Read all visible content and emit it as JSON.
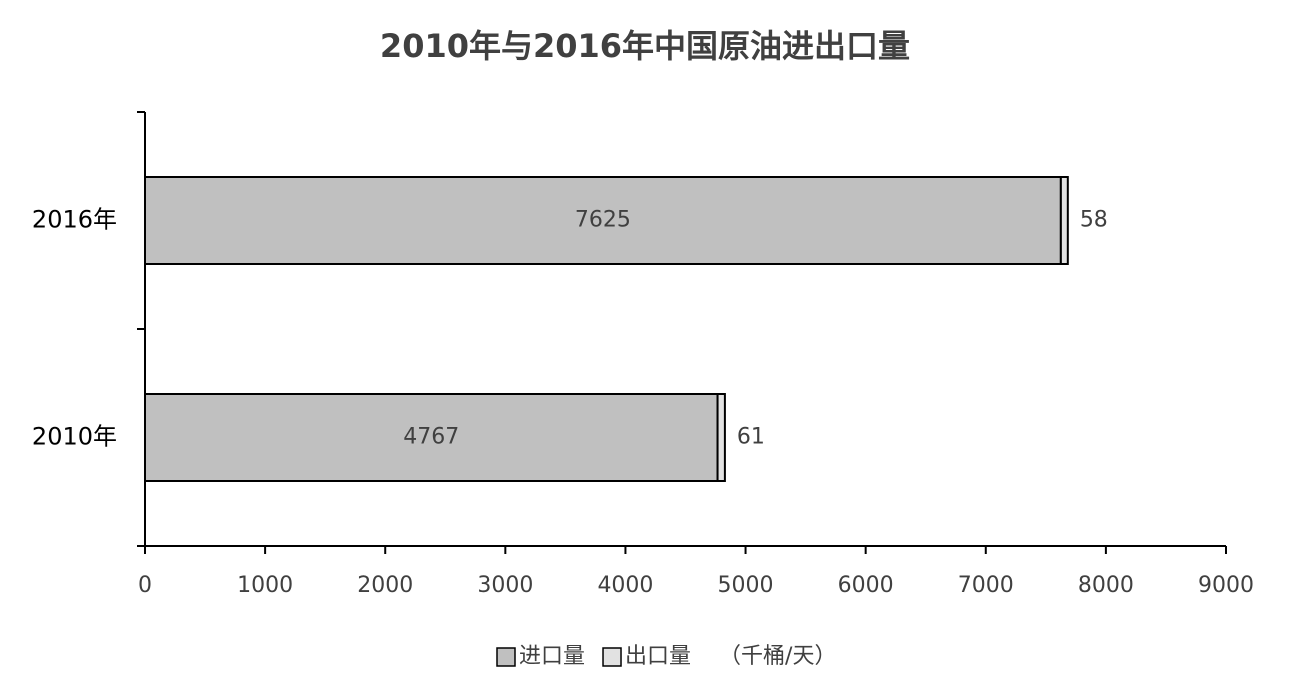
{
  "chart_data": {
    "type": "stacked_barh",
    "title": "2010年与2016年中国原油进出口量",
    "categories": [
      "2010年",
      "2016年"
    ],
    "series": [
      {
        "name": "进口量",
        "color": "#c0c0c0",
        "values": [
          4767,
          7625
        ]
      },
      {
        "name": "出口量",
        "color": "#e2e2e2",
        "values": [
          61,
          58
        ]
      }
    ],
    "unit_label": "（千桶/天）",
    "xlim": [
      0,
      9000
    ],
    "xticks": [
      0,
      1000,
      2000,
      3000,
      4000,
      5000,
      6000,
      7000,
      8000,
      9000
    ],
    "grid": false,
    "legend": "bottom"
  }
}
